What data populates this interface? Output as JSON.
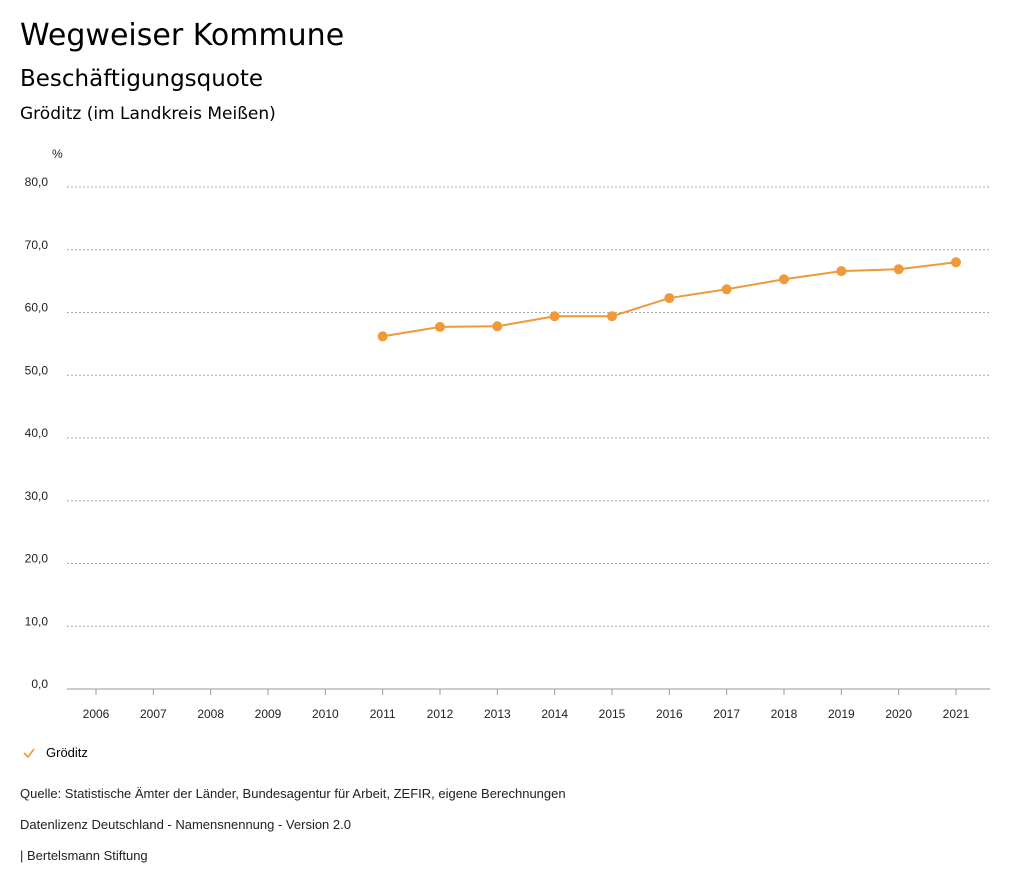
{
  "header": {
    "title": "Wegweiser Kommune",
    "subtitle": "Beschäftigungsquote",
    "region": "Gröditz (im Landkreis Meißen)"
  },
  "chart_data": {
    "type": "line",
    "title": "Beschäftigungsquote",
    "ylabel": "%",
    "xlabel": "",
    "ylim": [
      0,
      80
    ],
    "yticks": [
      "0,0",
      "10,0",
      "20,0",
      "30,0",
      "40,0",
      "50,0",
      "60,0",
      "70,0",
      "80,0"
    ],
    "categories": [
      "2006",
      "2007",
      "2008",
      "2009",
      "2010",
      "2011",
      "2012",
      "2013",
      "2014",
      "2015",
      "2016",
      "2017",
      "2018",
      "2019",
      "2020",
      "2021"
    ],
    "series": [
      {
        "name": "Gröditz",
        "color": "#f0993a",
        "values": [
          null,
          null,
          null,
          null,
          null,
          56.2,
          57.7,
          57.8,
          59.4,
          59.4,
          62.3,
          63.7,
          65.3,
          66.6,
          66.9,
          68.0
        ]
      }
    ],
    "grid": true,
    "legend_position": "bottom-left"
  },
  "legend": {
    "label": "Gröditz",
    "icon": "check-icon"
  },
  "footer": {
    "source": "Quelle: Statistische Ämter der Länder, Bundesagentur für Arbeit, ZEFIR, eigene Berechnungen",
    "license": "Datenlizenz Deutschland - Namensnennung - Version 2.0",
    "credit": "| Bertelsmann Stiftung"
  }
}
